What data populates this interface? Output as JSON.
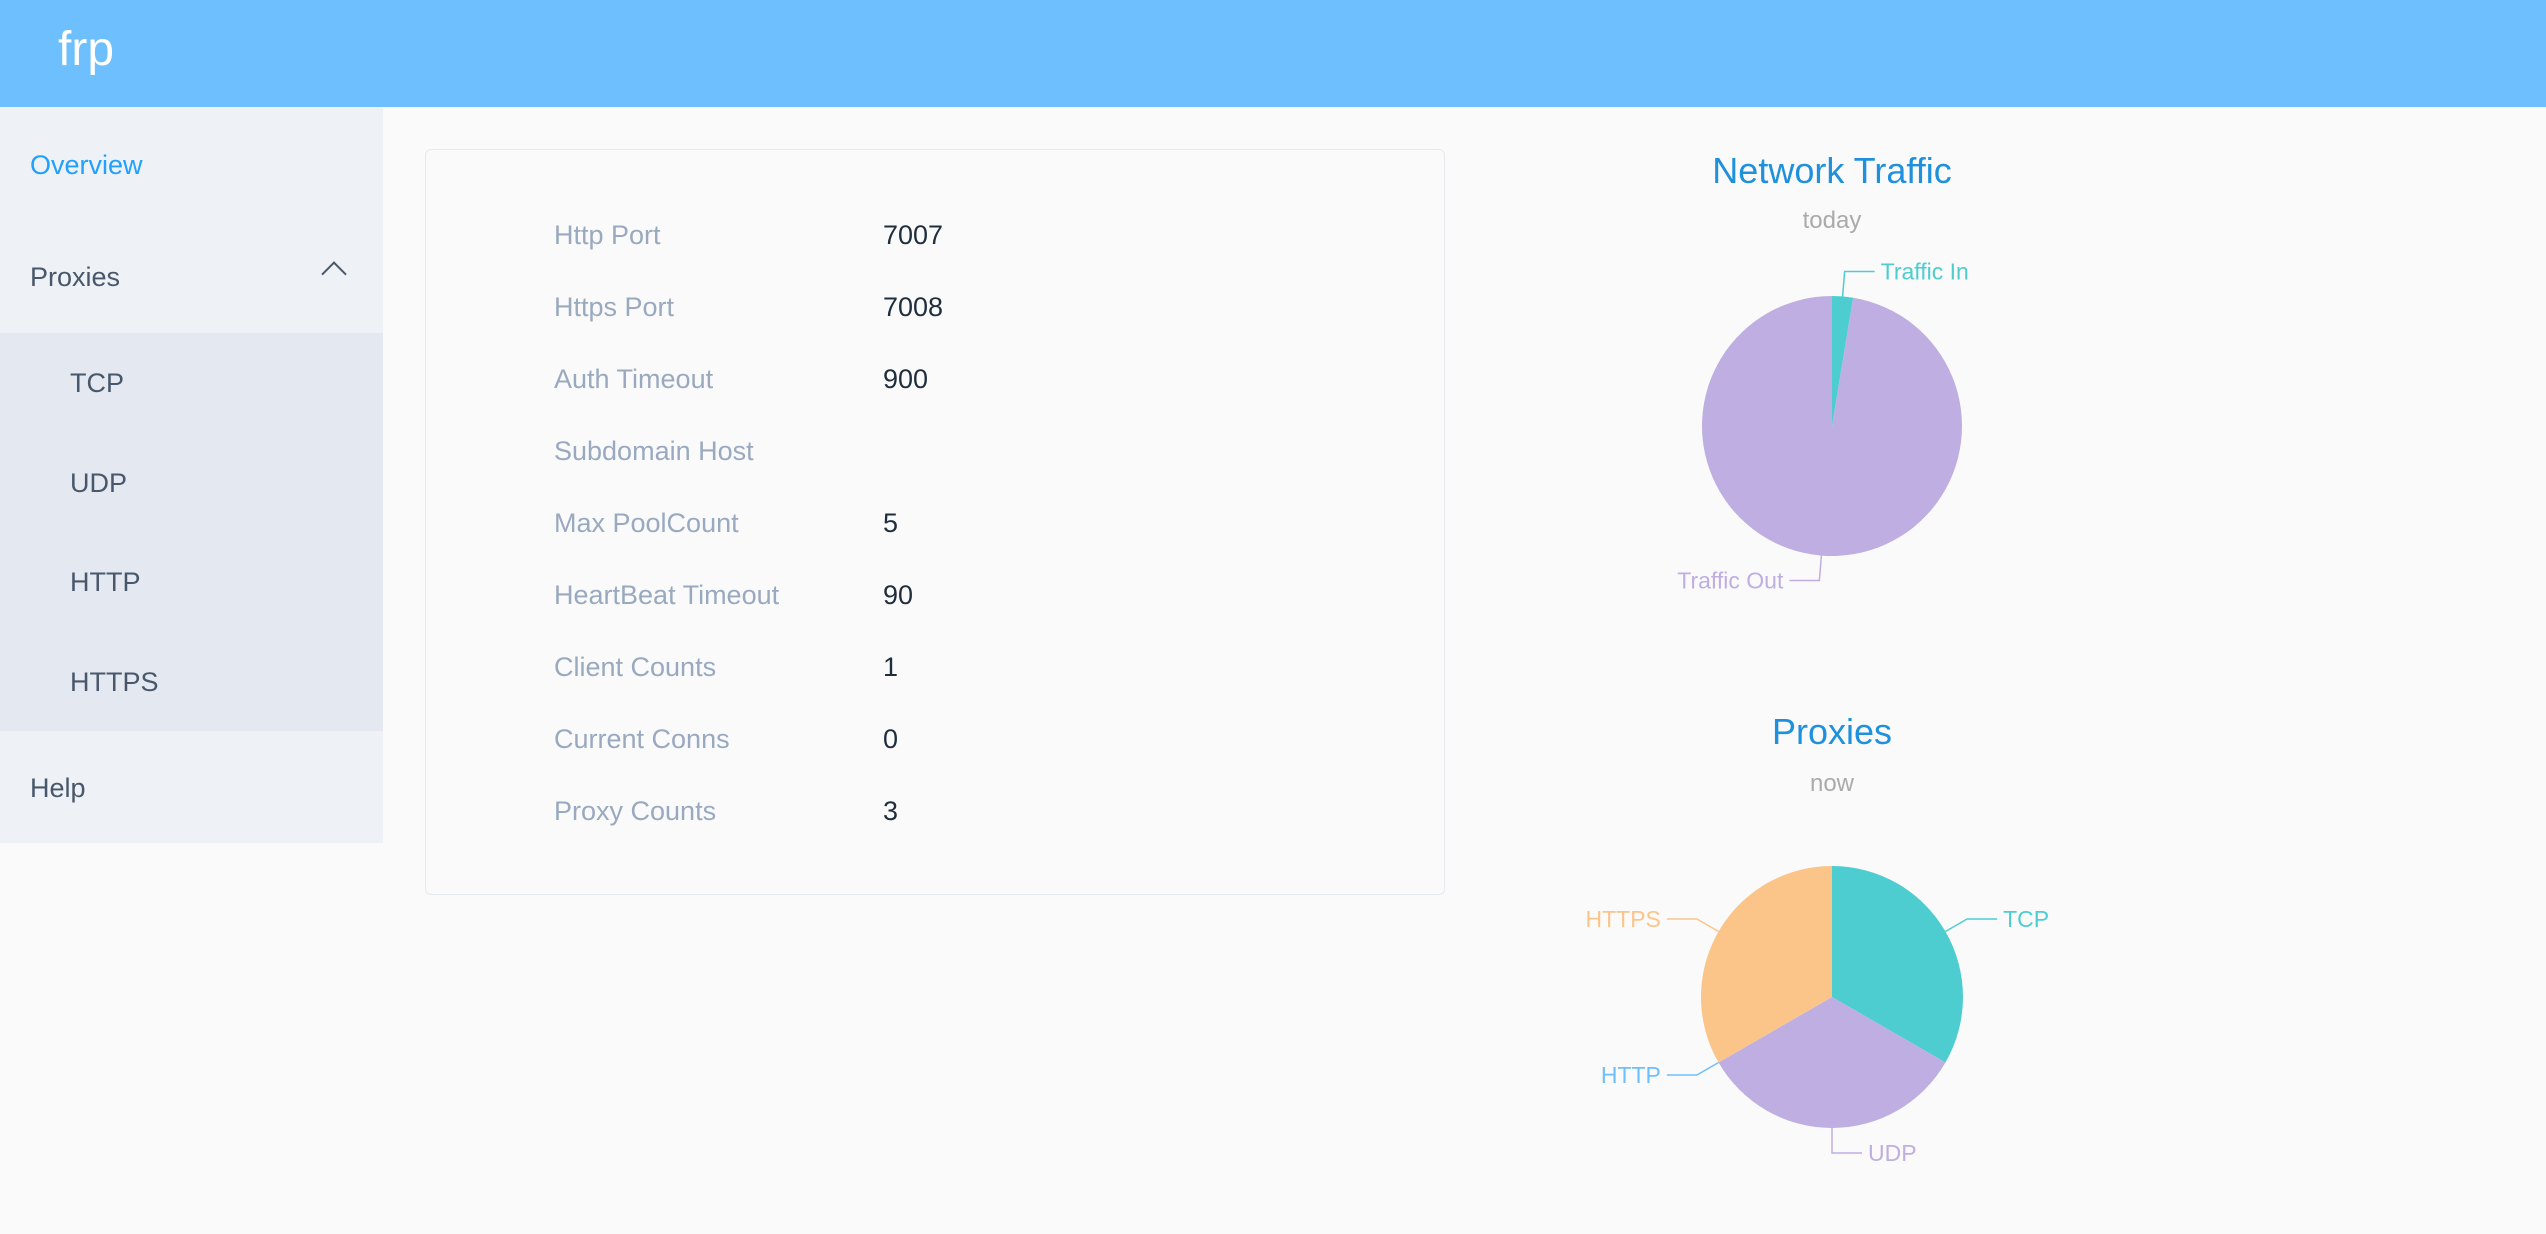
{
  "header": {
    "logo": "frp"
  },
  "sidebar": {
    "overview": "Overview",
    "proxies": "Proxies",
    "tcp": "TCP",
    "udp": "UDP",
    "http": "HTTP",
    "https": "HTTPS",
    "help": "Help"
  },
  "info": [
    {
      "label": "Http Port",
      "value": "7007"
    },
    {
      "label": "Https Port",
      "value": "7008"
    },
    {
      "label": "Auth Timeout",
      "value": "900"
    },
    {
      "label": "Subdomain Host",
      "value": ""
    },
    {
      "label": "Max PoolCount",
      "value": "5"
    },
    {
      "label": "HeartBeat Timeout",
      "value": "90"
    },
    {
      "label": "Client Counts",
      "value": "1"
    },
    {
      "label": "Current Conns",
      "value": "0"
    },
    {
      "label": "Proxy Counts",
      "value": "3"
    }
  ],
  "chart_data": [
    {
      "type": "pie",
      "title": "Network Traffic",
      "subtitle": "today",
      "categories": [
        "Traffic In",
        "Traffic Out"
      ],
      "values": [
        2.6,
        97.4
      ],
      "colors": [
        "#4ecdd1",
        "#bfaee1"
      ]
    },
    {
      "type": "pie",
      "title": "Proxies",
      "subtitle": "now",
      "categories": [
        "TCP",
        "UDP",
        "HTTP",
        "HTTPS"
      ],
      "values": [
        1,
        1,
        0,
        1
      ],
      "colors": [
        "#4ecdd1",
        "#bfaee1",
        "#6ebffe",
        "#fbc58a"
      ]
    }
  ]
}
